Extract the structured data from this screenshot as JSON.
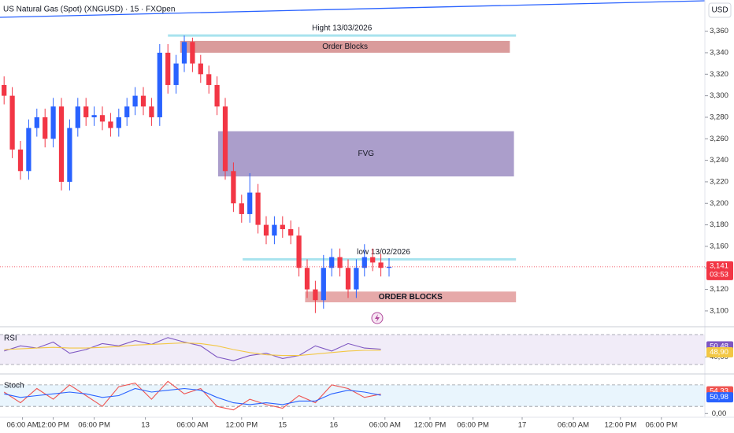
{
  "header": {
    "symbol": "US Natural Gas (Spot) (XNGUSD) · 15 · FXOpen",
    "currency": "USD"
  },
  "chart_data": [
    {
      "type": "candlestick",
      "xlim": [
        0,
        344
      ],
      "ylim": [
        3.0875,
        3.389
      ],
      "yticks": [
        {
          "value": 3.1,
          "label": "3,100"
        },
        {
          "value": 3.12,
          "label": "3,120"
        },
        {
          "value": 3.14,
          "label": "3,140"
        },
        {
          "value": 3.16,
          "label": "3,160"
        },
        {
          "value": 3.18,
          "label": "3,180"
        },
        {
          "value": 3.2,
          "label": "3,200"
        },
        {
          "value": 3.22,
          "label": "3,220"
        },
        {
          "value": 3.24,
          "label": "3,240"
        },
        {
          "value": 3.26,
          "label": "3,260"
        },
        {
          "value": 3.28,
          "label": "3,280"
        },
        {
          "value": 3.3,
          "label": "3,300"
        },
        {
          "value": 3.32,
          "label": "3,320"
        },
        {
          "value": 3.34,
          "label": "3,340"
        },
        {
          "value": 3.36,
          "label": "3,360"
        }
      ],
      "xticks": [
        {
          "value": 11,
          "label": "06:00 AM"
        },
        {
          "value": 26,
          "label": "12:00 PM"
        },
        {
          "value": 46,
          "label": "06:00 PM"
        },
        {
          "value": 71,
          "label": "13"
        },
        {
          "value": 94,
          "label": "06:00 AM"
        },
        {
          "value": 118,
          "label": "12:00 PM"
        },
        {
          "value": 138,
          "label": "15"
        },
        {
          "value": 163,
          "label": "16"
        },
        {
          "value": 188,
          "label": "06:00 AM"
        },
        {
          "value": 210,
          "label": "12:00 PM"
        },
        {
          "value": 231,
          "label": "06:00 PM"
        },
        {
          "value": 255,
          "label": "17"
        },
        {
          "value": 280,
          "label": "06:00 AM"
        },
        {
          "value": 303,
          "label": "12:00 PM"
        },
        {
          "value": 323,
          "label": "06:00 PM"
        }
      ],
      "x": [
        2,
        6,
        10,
        14,
        18,
        22,
        26,
        30,
        34,
        38,
        42,
        46,
        50,
        54,
        58,
        62,
        66,
        70,
        74,
        78,
        82,
        86,
        90,
        94,
        98,
        102,
        106,
        110,
        114,
        118,
        122,
        126,
        130,
        134,
        138,
        142,
        146,
        150,
        154,
        158,
        162,
        166,
        170,
        174,
        178,
        182,
        186,
        190
      ],
      "open": [
        3.31,
        3.3,
        3.25,
        3.23,
        3.27,
        3.28,
        3.26,
        3.29,
        3.22,
        3.27,
        3.29,
        3.28,
        3.282,
        3.276,
        3.27,
        3.28,
        3.29,
        3.3,
        3.29,
        3.28,
        3.34,
        3.31,
        3.33,
        3.35,
        3.33,
        3.32,
        3.31,
        3.29,
        3.23,
        3.2,
        3.19,
        3.21,
        3.18,
        3.17,
        3.18,
        3.176,
        3.17,
        3.14,
        3.12,
        3.11,
        3.14,
        3.15,
        3.14,
        3.12,
        3.14,
        3.15,
        3.145,
        3.14
      ],
      "high": [
        3.318,
        3.308,
        3.258,
        3.278,
        3.288,
        3.288,
        3.298,
        3.298,
        3.278,
        3.298,
        3.298,
        3.29,
        3.29,
        3.284,
        3.288,
        3.298,
        3.308,
        3.308,
        3.298,
        3.348,
        3.348,
        3.338,
        3.356,
        3.354,
        3.338,
        3.328,
        3.318,
        3.298,
        3.238,
        3.208,
        3.228,
        3.218,
        3.188,
        3.188,
        3.188,
        3.184,
        3.178,
        3.148,
        3.128,
        3.152,
        3.158,
        3.158,
        3.148,
        3.148,
        3.162,
        3.158,
        3.153,
        3.149
      ],
      "low": [
        3.292,
        3.242,
        3.222,
        3.222,
        3.262,
        3.252,
        3.252,
        3.212,
        3.212,
        3.262,
        3.272,
        3.272,
        3.268,
        3.262,
        3.262,
        3.272,
        3.282,
        3.282,
        3.272,
        3.272,
        3.302,
        3.302,
        3.322,
        3.322,
        3.312,
        3.302,
        3.282,
        3.222,
        3.192,
        3.182,
        3.182,
        3.172,
        3.162,
        3.162,
        3.168,
        3.162,
        3.132,
        3.112,
        3.098,
        3.102,
        3.132,
        3.132,
        3.112,
        3.112,
        3.132,
        3.137,
        3.132,
        3.132
      ],
      "close": [
        3.3,
        3.25,
        3.23,
        3.27,
        3.28,
        3.26,
        3.29,
        3.22,
        3.27,
        3.29,
        3.28,
        3.282,
        3.276,
        3.27,
        3.28,
        3.29,
        3.3,
        3.29,
        3.28,
        3.34,
        3.31,
        3.33,
        3.35,
        3.33,
        3.32,
        3.31,
        3.29,
        3.23,
        3.2,
        3.19,
        3.21,
        3.18,
        3.17,
        3.18,
        3.176,
        3.17,
        3.14,
        3.12,
        3.11,
        3.14,
        3.15,
        3.14,
        3.12,
        3.14,
        3.15,
        3.145,
        3.14,
        3.141
      ],
      "up_color": "#2962ff",
      "down_color": "#f23645",
      "last_price": {
        "value": 3.141,
        "label": "3,141"
      },
      "countdown": "03:53",
      "levels": [
        {
          "text": "Hight 13/03/2026",
          "value": 3.356,
          "x": [
            82,
            252
          ]
        },
        {
          "text": "low 13/02/2026",
          "value": 3.148,
          "x": [
            118.5,
            252
          ]
        }
      ],
      "zones": [
        {
          "text": "Order Blocks",
          "x": [
            88,
            249
          ],
          "y": [
            3.34,
            3.351
          ],
          "color": "#d48a8a"
        },
        {
          "text": "FVG",
          "x": [
            106.5,
            251
          ],
          "y": [
            3.225,
            3.267
          ],
          "color": "#9c8dc2"
        },
        {
          "text": "ORDER BLOCKS",
          "x": [
            149,
            252
          ],
          "y": [
            3.108,
            3.118
          ],
          "color": "#e29a9a"
        }
      ]
    },
    {
      "type": "line",
      "title": "RSI",
      "xlim": [
        0,
        344
      ],
      "ylim": [
        20.5,
        77.4
      ],
      "band": [
        30,
        70
      ],
      "yticks": [
        {
          "value": 40,
          "label": "40,00"
        }
      ],
      "x": [
        2,
        10,
        18,
        26,
        34,
        42,
        50,
        58,
        66,
        74,
        82,
        90,
        98,
        106,
        114,
        122,
        130,
        138,
        146,
        154,
        162,
        170,
        178,
        186
      ],
      "series": [
        {
          "color": "#7e57c2",
          "values": [
            48,
            55,
            52,
            60,
            45,
            50,
            58,
            55,
            62,
            57,
            66,
            60,
            55,
            40,
            35,
            42,
            45,
            38,
            42,
            55,
            48,
            58,
            52,
            50.48
          ],
          "last_label": "50,48"
        },
        {
          "color": "#f2c744",
          "values": [
            50,
            51,
            52,
            53,
            52,
            52,
            53,
            54,
            56,
            57,
            58,
            59,
            58,
            55,
            50,
            46,
            43,
            42,
            42,
            44,
            46,
            48,
            49,
            48.9
          ],
          "last_label": "48,90"
        }
      ]
    },
    {
      "type": "line",
      "title": "Stoch",
      "xlim": [
        0,
        344
      ],
      "ylim": [
        -6,
        104
      ],
      "band": [
        20,
        80
      ],
      "yticks": [
        {
          "value": 0,
          "label": "0,00"
        }
      ],
      "x": [
        2,
        10,
        18,
        26,
        34,
        42,
        50,
        58,
        66,
        74,
        82,
        90,
        98,
        106,
        114,
        122,
        130,
        138,
        146,
        154,
        162,
        170,
        178,
        186
      ],
      "series": [
        {
          "color": "#ef5350",
          "values": [
            60,
            30,
            70,
            40,
            80,
            50,
            20,
            75,
            85,
            40,
            90,
            55,
            70,
            20,
            10,
            40,
            25,
            15,
            50,
            30,
            80,
            70,
            45,
            54.33
          ],
          "last_label": "54,33"
        },
        {
          "color": "#2962ff",
          "values": [
            55,
            45,
            50,
            55,
            60,
            55,
            45,
            50,
            70,
            60,
            65,
            70,
            65,
            45,
            30,
            25,
            30,
            25,
            35,
            35,
            55,
            65,
            60,
            50.98
          ],
          "last_label": "50,98"
        }
      ]
    }
  ]
}
